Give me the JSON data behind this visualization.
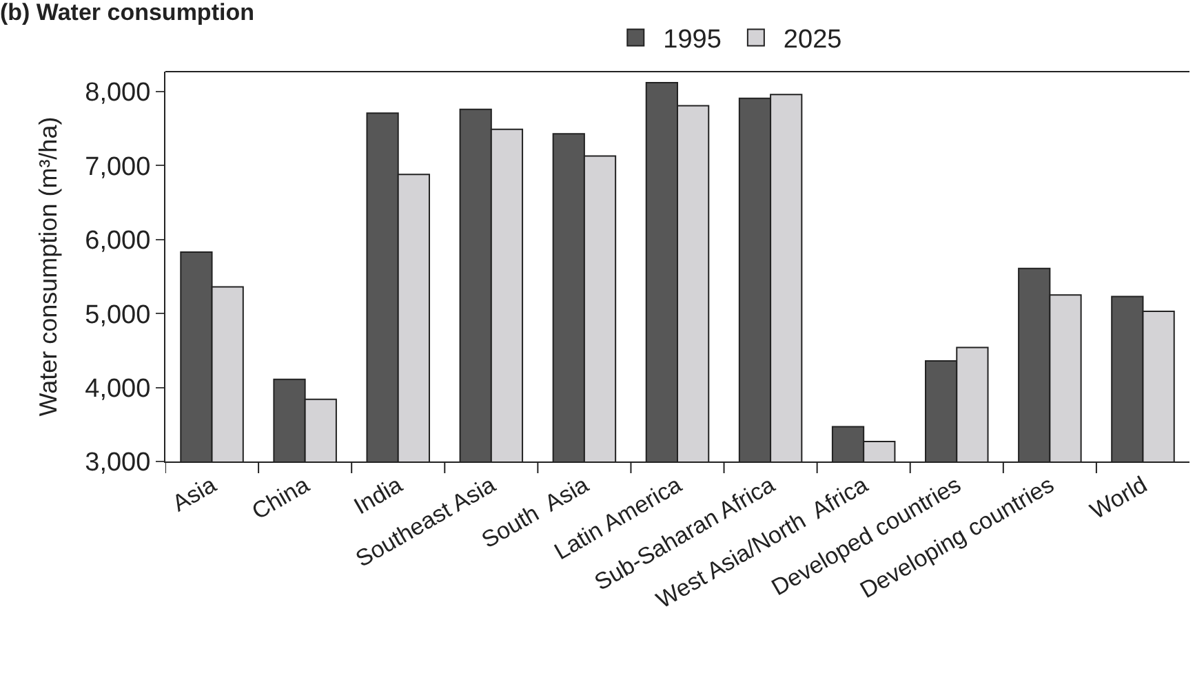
{
  "chart_data": {
    "type": "bar",
    "title": "(b) Water consumption",
    "ylabel": "Water consumption (m³/ha)",
    "categories": [
      "Asia",
      "China",
      "India",
      "Southeast Asia",
      "South  Asia",
      "Latin America",
      "Sub-Saharan Africa",
      "West Asia/North  Africa",
      "Developed countries",
      "Developing countries",
      "World"
    ],
    "series": [
      {
        "name": "1995",
        "color": "#575757",
        "values": [
          5830,
          4110,
          7710,
          7760,
          7430,
          8120,
          7910,
          3470,
          4360,
          5610,
          5230
        ]
      },
      {
        "name": "2025",
        "color": "#d4d3d6",
        "values": [
          5360,
          3840,
          6880,
          7490,
          7130,
          7810,
          7960,
          3270,
          4540,
          5250,
          5030
        ]
      }
    ],
    "ylim": [
      3000,
      8270
    ],
    "yticks": [
      {
        "value": 3000,
        "label": "3,000"
      },
      {
        "value": 4000,
        "label": "4,000"
      },
      {
        "value": 5000,
        "label": "5,000"
      },
      {
        "value": 6000,
        "label": "6,000"
      },
      {
        "value": 7000,
        "label": "7,000"
      },
      {
        "value": 8000,
        "label": "8,000"
      }
    ],
    "legend": "top"
  }
}
